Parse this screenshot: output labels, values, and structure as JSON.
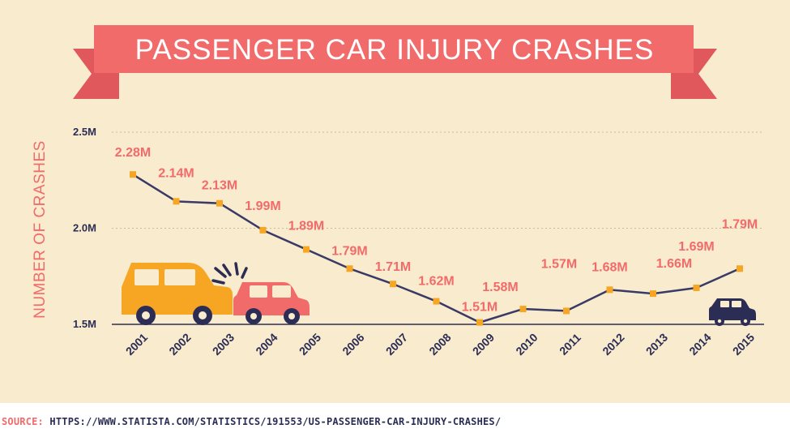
{
  "colors": {
    "background": "#f8ebce",
    "banner": "#f26b6b",
    "banner_tail": "#e0575c",
    "line": "#3a3a66",
    "marker": "#f6a623",
    "data_label": "#f26b6b",
    "axis_text": "#2c2d55",
    "car_yellow": "#f6a623",
    "car_red": "#f26b6b",
    "car_navy": "#2c2d55"
  },
  "icons": [
    "yellow-car-icon",
    "red-car-icon",
    "crash-burst-icon",
    "navy-car-icon"
  ],
  "source": {
    "label": "SOURCE:",
    "url": "HTTPS://WWW.STATISTA.COM/STATISTICS/191553/US-PASSENGER-CAR-INJURY-CRASHES/"
  },
  "chart_data": {
    "type": "line",
    "title": "PASSENGER CAR INJURY CRASHES",
    "xlabel": "",
    "ylabel": "NUMBER OF CRASHES",
    "y_unit": "millions",
    "ylim": [
      1.5,
      2.5
    ],
    "yticks": [
      {
        "value": 2.5,
        "label": "2.5M"
      },
      {
        "value": 2.0,
        "label": "2.0M"
      },
      {
        "value": 1.5,
        "label": "1.5M"
      }
    ],
    "grid": "horizontal dotted",
    "categories": [
      "2001",
      "2002",
      "2003",
      "2004",
      "2005",
      "2006",
      "2007",
      "2008",
      "2009",
      "2010",
      "2011",
      "2012",
      "2013",
      "2014",
      "2015"
    ],
    "values": [
      2.28,
      2.14,
      2.13,
      1.99,
      1.89,
      1.79,
      1.71,
      1.62,
      1.51,
      1.58,
      1.57,
      1.68,
      1.66,
      1.69,
      1.79
    ],
    "data_labels": [
      "2.28M",
      "2.14M",
      "2.13M",
      "1.99M",
      "1.89M",
      "1.79M",
      "1.71M",
      "1.62M",
      "1.51M",
      "1.58M",
      "1.57M",
      "1.68M",
      "1.66M",
      "1.69M",
      "1.79M"
    ]
  }
}
